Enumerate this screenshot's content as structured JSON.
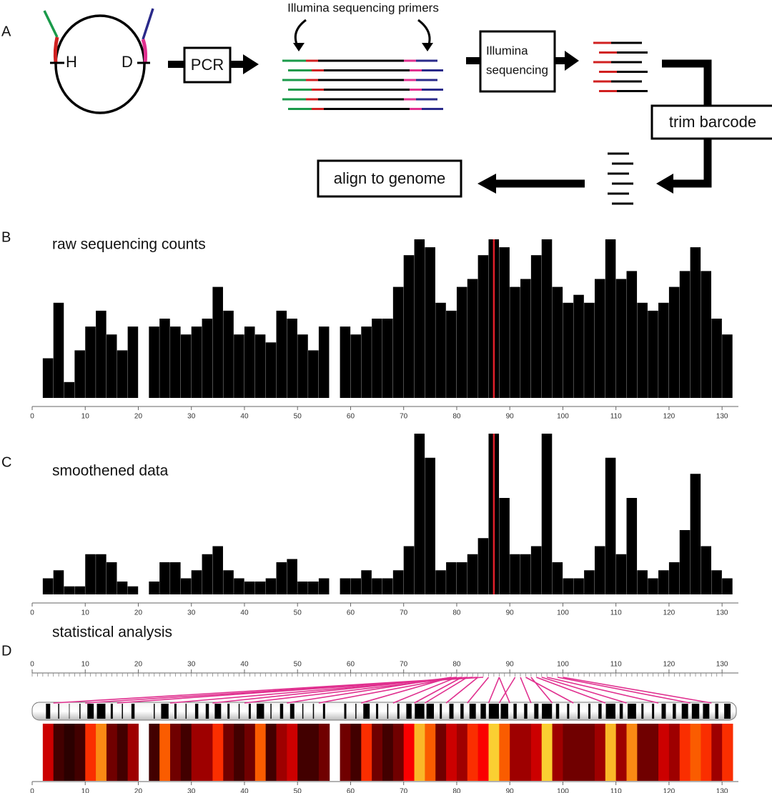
{
  "panel_labels": [
    "A",
    "B",
    "C",
    "D"
  ],
  "diagram": {
    "h_site": "H",
    "d_site": "D",
    "pcr": "PCR",
    "primers": "Illumina sequencing primers",
    "sequencing": [
      "Illumina",
      "sequencing"
    ],
    "trim": "trim barcode",
    "align": "align to genome"
  },
  "chart_data": [
    {
      "type": "bar",
      "title": "raw sequencing counts",
      "color": "#000000",
      "highlight_x": 87,
      "highlight_color": "#e0202a",
      "x": [
        3,
        5,
        7,
        9,
        11,
        13,
        15,
        17,
        19,
        21,
        23,
        25,
        27,
        29,
        31,
        33,
        35,
        37,
        39,
        41,
        43,
        45,
        47,
        49,
        51,
        53,
        55,
        57,
        59,
        61,
        63,
        65,
        67,
        69,
        71,
        73,
        75,
        77,
        79,
        81,
        83,
        85,
        87,
        89,
        91,
        93,
        95,
        97,
        99,
        101,
        103,
        105,
        107,
        109,
        111,
        113,
        115,
        117,
        119,
        121,
        123,
        125,
        127,
        129,
        131
      ],
      "values": [
        25,
        60,
        10,
        30,
        45,
        55,
        40,
        30,
        45,
        null,
        45,
        50,
        45,
        40,
        45,
        50,
        70,
        55,
        40,
        45,
        40,
        35,
        55,
        50,
        40,
        30,
        45,
        null,
        45,
        40,
        45,
        50,
        50,
        70,
        90,
        100,
        95,
        60,
        55,
        70,
        75,
        90,
        100,
        95,
        70,
        75,
        90,
        100,
        70,
        60,
        65,
        60,
        75,
        100,
        75,
        80,
        60,
        55,
        60,
        70,
        80,
        95,
        80,
        50,
        40
      ],
      "xlim": [
        0,
        132
      ],
      "xticks": [
        0,
        10,
        20,
        30,
        40,
        50,
        60,
        70,
        80,
        90,
        100,
        110,
        120,
        130
      ],
      "ylim": [
        0,
        100
      ]
    },
    {
      "type": "bar",
      "title": "smoothened data",
      "color": "#000000",
      "highlight_x": 87,
      "highlight_color": "#e0202a",
      "x": [
        3,
        5,
        7,
        9,
        11,
        13,
        15,
        17,
        19,
        21,
        23,
        25,
        27,
        29,
        31,
        33,
        35,
        37,
        39,
        41,
        43,
        45,
        47,
        49,
        51,
        53,
        55,
        57,
        59,
        61,
        63,
        65,
        67,
        69,
        71,
        73,
        75,
        77,
        79,
        81,
        83,
        85,
        87,
        89,
        91,
        93,
        95,
        97,
        99,
        101,
        103,
        105,
        107,
        109,
        111,
        113,
        115,
        117,
        119,
        121,
        123,
        125,
        127,
        129,
        131
      ],
      "values": [
        10,
        15,
        5,
        5,
        25,
        25,
        20,
        8,
        5,
        null,
        8,
        20,
        20,
        10,
        15,
        25,
        30,
        15,
        10,
        8,
        8,
        10,
        20,
        22,
        8,
        8,
        10,
        null,
        10,
        10,
        15,
        10,
        10,
        15,
        30,
        100,
        85,
        15,
        20,
        20,
        25,
        35,
        100,
        60,
        25,
        25,
        30,
        100,
        20,
        10,
        10,
        15,
        30,
        85,
        25,
        60,
        15,
        10,
        15,
        20,
        40,
        75,
        30,
        15,
        10
      ],
      "xlim": [
        0,
        132
      ],
      "xticks": [
        0,
        10,
        20,
        30,
        40,
        50,
        60,
        70,
        80,
        90,
        100,
        110,
        120,
        130
      ],
      "ylim": [
        0,
        100
      ]
    },
    {
      "type": "heatmap",
      "title": "statistical analysis",
      "link_color": "#e0308f",
      "x": [
        3,
        5,
        7,
        9,
        11,
        13,
        15,
        17,
        19,
        21,
        23,
        25,
        27,
        29,
        31,
        33,
        35,
        37,
        39,
        41,
        43,
        45,
        47,
        49,
        51,
        53,
        55,
        57,
        59,
        61,
        63,
        65,
        67,
        69,
        71,
        73,
        75,
        77,
        79,
        81,
        83,
        85,
        87,
        89,
        91,
        93,
        95,
        97,
        99,
        101,
        103,
        105,
        107,
        109,
        111,
        113,
        115,
        117,
        119,
        121,
        123,
        125,
        127,
        129,
        131
      ],
      "values": [
        40,
        10,
        5,
        10,
        60,
        80,
        20,
        10,
        30,
        null,
        10,
        70,
        20,
        10,
        30,
        30,
        60,
        20,
        10,
        20,
        70,
        10,
        30,
        40,
        10,
        10,
        20,
        null,
        20,
        10,
        60,
        20,
        10,
        20,
        50,
        90,
        70,
        20,
        40,
        30,
        60,
        50,
        95,
        70,
        30,
        30,
        40,
        95,
        30,
        20,
        20,
        20,
        30,
        90,
        30,
        80,
        20,
        20,
        40,
        30,
        60,
        70,
        60,
        30,
        60
      ],
      "links": [
        [
          4,
          84
        ],
        [
          10,
          85
        ],
        [
          16,
          83
        ],
        [
          26,
          82
        ],
        [
          34,
          80
        ],
        [
          40,
          81
        ],
        [
          48,
          79
        ],
        [
          54,
          80
        ],
        [
          62,
          79
        ],
        [
          68,
          80
        ],
        [
          72,
          81
        ],
        [
          74,
          82
        ],
        [
          78,
          84
        ],
        [
          82,
          86
        ],
        [
          86,
          88
        ],
        [
          88,
          91
        ],
        [
          90,
          88
        ],
        [
          94,
          92
        ],
        [
          98,
          94
        ],
        [
          102,
          93
        ],
        [
          108,
          95
        ],
        [
          112,
          96
        ],
        [
          118,
          97
        ],
        [
          124,
          99
        ],
        [
          128,
          100
        ]
      ],
      "xlim": [
        0,
        132
      ],
      "xticks": [
        0,
        10,
        20,
        30,
        40,
        50,
        60,
        70,
        80,
        90,
        100,
        110,
        120,
        130
      ]
    }
  ]
}
